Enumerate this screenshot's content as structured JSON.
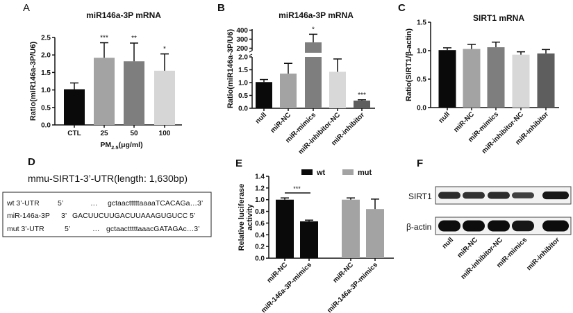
{
  "panels": {
    "A": "A",
    "B": "B",
    "C": "C",
    "D": "D",
    "E": "E",
    "F": "F"
  },
  "chart_data": [
    {
      "id": "A",
      "type": "bar",
      "title": "miR146a-3P mRNA",
      "ylabel": "Ratio(miR146a-3P/U6)",
      "xlabel": "PM2.5(μg/ml)",
      "xlabel_main": "PM",
      "xlabel_sub": "2.5",
      "xlabel_unit": "(μg/ml)",
      "categories": [
        "CTL",
        "25",
        "50",
        "100"
      ],
      "values": [
        1.02,
        1.92,
        1.82,
        1.55
      ],
      "errors": [
        0.18,
        0.43,
        0.52,
        0.48
      ],
      "significance": [
        "",
        "***",
        "**",
        "*"
      ],
      "colors": [
        "#0a0a0a",
        "#a3a3a3",
        "#7e7e7e",
        "#d6d6d6"
      ],
      "ylim": [
        0,
        2.5
      ],
      "yticks": [
        "0.0",
        "0.5",
        "1.0",
        "1.5",
        "2.0",
        "2.5"
      ],
      "grid": false
    },
    {
      "id": "B",
      "type": "bar",
      "title": "miR146a-3P mRNA",
      "ylabel": "Ratio(miR146a-3P/U6)",
      "categories": [
        "null",
        "miR-NC",
        "miR-mimics",
        "miR-inhibitor-NC",
        "miR-inhibitor"
      ],
      "values": [
        1.02,
        1.35,
        265,
        1.42,
        0.3
      ],
      "errors": [
        0.1,
        0.4,
        90,
        0.5,
        0.03
      ],
      "significance": [
        "",
        "",
        "*",
        "",
        "***"
      ],
      "colors": [
        "#0a0a0a",
        "#a3a3a3",
        "#7e7e7e",
        "#d8d8d8",
        "#5e5e5e"
      ],
      "ylim": [
        0,
        400
      ],
      "axis_break": [
        2.0,
        150
      ],
      "yticks_lower": [
        "0.0",
        "0.5",
        "1.0",
        "1.5",
        "2.0"
      ],
      "yticks_upper": [
        "200",
        "300",
        "400"
      ],
      "grid": false
    },
    {
      "id": "C",
      "type": "bar",
      "title": "SIRT1 mRNA",
      "ylabel": "Ratio(SIRT1/β-actin)",
      "categories": [
        "null",
        "miR-NC",
        "miR-mimics",
        "miR-inhibitor-NC",
        "miR-inhibitor"
      ],
      "values": [
        1.01,
        1.03,
        1.06,
        0.93,
        0.95
      ],
      "errors": [
        0.04,
        0.08,
        0.09,
        0.05,
        0.07
      ],
      "significance": [
        "",
        "",
        "",
        "",
        ""
      ],
      "colors": [
        "#0a0a0a",
        "#a3a3a3",
        "#7e7e7e",
        "#d8d8d8",
        "#5e5e5e"
      ],
      "ylim": [
        0,
        1.5
      ],
      "yticks": [
        "0.0",
        "0.5",
        "1.0",
        "1.5"
      ],
      "grid": false
    },
    {
      "id": "E",
      "type": "bar",
      "ylabel_line1": "Relative luciferase",
      "ylabel_line2": "activity",
      "categories": [
        "miR-NC",
        "miR-146a-3P-mimics",
        "miR-NC",
        "miR-146a-3P-mimics"
      ],
      "values": [
        1.0,
        0.63,
        1.0,
        0.84
      ],
      "errors": [
        0.03,
        0.02,
        0.03,
        0.17
      ],
      "series_of_bar": [
        "wt",
        "wt",
        "mut",
        "mut"
      ],
      "legend": [
        {
          "name": "wt",
          "color": "#0a0a0a"
        },
        {
          "name": "mut",
          "color": "#a3a3a3"
        }
      ],
      "legend_position": "top",
      "significance_bracket": {
        "between": [
          0,
          1
        ],
        "label": "***"
      },
      "ylim": [
        0,
        1.4
      ],
      "yticks": [
        "0.0",
        "0.2",
        "0.4",
        "0.6",
        "0.8",
        "1.0",
        "1.2",
        "1.4"
      ],
      "grid": false
    }
  ],
  "sequence_panel": {
    "title": "mmu-SIRT1-3’-UTR(length: 1,630bp)",
    "rows": [
      {
        "name": "wt 3’-UTR",
        "end5": "5’",
        "dots": "…",
        "seq": "gctaactttttaaaaTCACAGa…3’"
      },
      {
        "name": "miR-146a-3P",
        "end5": "3’",
        "dots": "",
        "seq": "GACUUCUUGACUUAAAGUGUCC  5’"
      },
      {
        "name": "mut 3’-UTR",
        "end5": "5’",
        "dots": "…",
        "seq": "gctaactttttaaacGATAGAc…3’"
      }
    ]
  },
  "western_blot": {
    "rows": [
      "SIRT1",
      "β-actin"
    ],
    "lanes": [
      "null",
      "miR-NC",
      "miR-inhibitor-NC",
      "miR-mimics",
      "miR-inhibitor"
    ],
    "band_intensity": {
      "SIRT1": [
        0.7,
        0.65,
        0.7,
        0.5,
        0.9
      ],
      "β-actin": [
        1.0,
        1.0,
        1.0,
        0.9,
        1.0
      ]
    }
  }
}
